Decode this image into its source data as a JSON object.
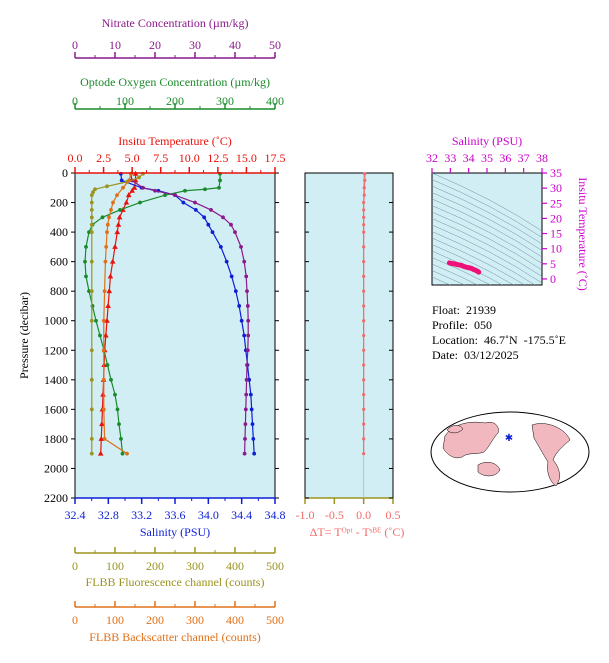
{
  "colors": {
    "temperature": "#e8120c",
    "salinity": "#0d1fd6",
    "oxygen": "#1a8a2a",
    "nitrate": "#8b1a8b",
    "fluorescence": "#9c9420",
    "backscatter": "#e07018",
    "dT": "#f26b6b",
    "ts_title": "#cc00cc",
    "ts_points": "#ee1177",
    "plot_bg": "#d2eef5",
    "map_land": "#f2b8c0"
  },
  "info": {
    "float": "Float:  21939",
    "profile": "Profile:  050",
    "location": "Location:  46.7˚N  -175.5˚E",
    "date": "Date:  03/12/2025"
  },
  "chart_data": [
    {
      "type": "line",
      "name": "profile",
      "ylabel": "Pressure (decibar)",
      "ylim": [
        2200,
        0
      ],
      "yticks": [
        "0",
        "200",
        "400",
        "600",
        "800",
        "1000",
        "1200",
        "1400",
        "1600",
        "1800",
        "2000",
        "2200"
      ],
      "axes": {
        "nitrate": {
          "label": "Nitrate Concentration (µm/kg)",
          "range": [
            0,
            50
          ],
          "ticks": [
            "0",
            "10",
            "20",
            "30",
            "40",
            "50"
          ]
        },
        "oxygen": {
          "label": "Optode Oxygen Concentration (µm/kg)",
          "range": [
            0,
            400
          ],
          "ticks": [
            "0",
            "100",
            "200",
            "300",
            "400"
          ]
        },
        "temperature": {
          "label": "Insitu Temperature (˚C)",
          "range": [
            0,
            17.5
          ],
          "ticks": [
            "0.0",
            "2.5",
            "5.0",
            "7.5",
            "10.0",
            "12.5",
            "15.0",
            "17.5"
          ]
        },
        "salinity": {
          "label": "Salinity (PSU)",
          "range": [
            32.4,
            34.8
          ],
          "ticks": [
            "32.4",
            "32.8",
            "33.2",
            "33.6",
            "34.0",
            "34.4",
            "34.8"
          ]
        },
        "fluorescence": {
          "label": "FLBB Fluorescence channel (counts)",
          "range": [
            0,
            500
          ],
          "ticks": [
            "0",
            "100",
            "200",
            "300",
            "400",
            "500"
          ]
        },
        "backscatter": {
          "label": "FLBB Backscatter channel (counts)",
          "range": [
            0,
            500
          ],
          "ticks": [
            "0",
            "100",
            "200",
            "300",
            "400",
            "500"
          ]
        }
      },
      "series": [
        {
          "key": "temperature",
          "pressure": [
            5,
            50,
            100,
            120,
            150,
            200,
            250,
            300,
            350,
            400,
            500,
            600,
            700,
            800,
            900,
            1000,
            1100,
            1200,
            1300,
            1400,
            1500,
            1600,
            1700,
            1800,
            1900
          ],
          "values": [
            5.3,
            5.3,
            5.2,
            5.0,
            4.7,
            4.5,
            4.2,
            3.9,
            3.8,
            3.7,
            3.5,
            3.3,
            3.1,
            3.0,
            2.9,
            2.8,
            2.7,
            2.6,
            2.55,
            2.5,
            2.45,
            2.4,
            2.35,
            2.3,
            2.25
          ]
        },
        {
          "key": "salinity",
          "pressure": [
            5,
            50,
            100,
            120,
            150,
            200,
            250,
            300,
            350,
            400,
            500,
            600,
            700,
            800,
            900,
            1000,
            1100,
            1200,
            1300,
            1400,
            1500,
            1600,
            1700,
            1800,
            1900
          ],
          "values": [
            32.95,
            32.96,
            33.2,
            33.4,
            33.6,
            33.7,
            33.85,
            33.95,
            34.0,
            34.05,
            34.15,
            34.22,
            34.28,
            34.33,
            34.37,
            34.4,
            34.43,
            34.45,
            34.47,
            34.49,
            34.51,
            34.52,
            34.53,
            34.54,
            34.55
          ]
        },
        {
          "key": "oxygen",
          "pressure": [
            5,
            50,
            100,
            110,
            120,
            150,
            200,
            250,
            300,
            350,
            400,
            500,
            600,
            700,
            800,
            900,
            1000,
            1100,
            1200,
            1300,
            1400,
            1500,
            1600,
            1700,
            1800,
            1900
          ],
          "values": [
            290,
            290,
            288,
            260,
            220,
            180,
            130,
            90,
            55,
            35,
            28,
            22,
            20,
            22,
            28,
            35,
            42,
            50,
            58,
            65,
            72,
            80,
            85,
            88,
            92,
            95
          ]
        },
        {
          "key": "nitrate",
          "pressure": [
            5,
            50,
            100,
            120,
            150,
            200,
            250,
            300,
            350,
            400,
            500,
            600,
            700,
            800,
            900,
            1000,
            1100,
            1200,
            1300,
            1400,
            1500,
            1600,
            1700,
            1800,
            1900
          ],
          "values": [
            14,
            14.2,
            17,
            20,
            25,
            30,
            34,
            37,
            39,
            40,
            41.5,
            42.3,
            42.8,
            43,
            43.2,
            43.3,
            43.3,
            43.2,
            43,
            42.9,
            42.8,
            42.7,
            42.6,
            42.5,
            42.4
          ]
        },
        {
          "key": "fluorescence",
          "pressure": [
            5,
            30,
            60,
            90,
            110,
            130,
            150,
            200,
            250,
            300,
            350,
            400,
            600,
            800,
            1000,
            1200,
            1400,
            1600,
            1800,
            1900
          ],
          "values": [
            170,
            160,
            130,
            80,
            50,
            45,
            42,
            42,
            42,
            42,
            42,
            42,
            42,
            42,
            42,
            42,
            42,
            42,
            42,
            42
          ]
        },
        {
          "key": "backscatter",
          "pressure": [
            5,
            50,
            100,
            150,
            200,
            250,
            300,
            350,
            400,
            500,
            600,
            800,
            1000,
            1200,
            1400,
            1600,
            1800,
            1900
          ],
          "values": [
            140,
            135,
            120,
            105,
            95,
            90,
            85,
            82,
            80,
            78,
            76,
            74,
            72,
            72,
            72,
            72,
            74,
            130
          ]
        }
      ]
    },
    {
      "type": "line",
      "name": "delta-temperature",
      "xlabel": "ΔT= Tᴼᵖᵗ - Tˢᴮᴱ (˚C)",
      "xlim": [
        -1.0,
        0.5
      ],
      "xticks": [
        "-1.0",
        "-0.5",
        "0.0",
        "0.5"
      ],
      "series": [
        {
          "key": "dT",
          "pressure": [
            5,
            50,
            100,
            150,
            200,
            250,
            300,
            350,
            400,
            500,
            600,
            700,
            800,
            900,
            1000,
            1100,
            1200,
            1300,
            1400,
            1500,
            1600,
            1700,
            1800,
            1900
          ],
          "values": [
            0.02,
            0.02,
            0.01,
            0.01,
            0.0,
            0.0,
            0.0,
            0.0,
            0.0,
            0.0,
            0.0,
            0.0,
            0.0,
            0.0,
            0.0,
            0.0,
            0.0,
            0.0,
            0.0,
            0.0,
            0.0,
            0.0,
            0.0,
            0.0
          ]
        }
      ]
    },
    {
      "type": "scatter",
      "name": "ts-diagram",
      "title": "Salinity (PSU)",
      "ylabel": "Insitu Temperature (˚C)",
      "xlim": [
        32,
        38
      ],
      "ylim": [
        -2,
        35
      ],
      "xticks": [
        "32",
        "33",
        "34",
        "35",
        "36",
        "37",
        "38"
      ],
      "yticks": [
        "0",
        "5",
        "10",
        "15",
        "20",
        "25",
        "30",
        "35"
      ],
      "points": [
        [
          32.95,
          5.3
        ],
        [
          33.0,
          5.2
        ],
        [
          33.2,
          5.0
        ],
        [
          33.4,
          4.7
        ],
        [
          33.6,
          4.5
        ],
        [
          33.7,
          4.2
        ],
        [
          33.85,
          3.9
        ],
        [
          34.0,
          3.7
        ],
        [
          34.15,
          3.5
        ],
        [
          34.28,
          3.1
        ],
        [
          34.37,
          2.9
        ],
        [
          34.43,
          2.7
        ],
        [
          34.47,
          2.55
        ],
        [
          34.51,
          2.45
        ],
        [
          34.53,
          2.35
        ],
        [
          34.55,
          2.25
        ]
      ]
    }
  ]
}
